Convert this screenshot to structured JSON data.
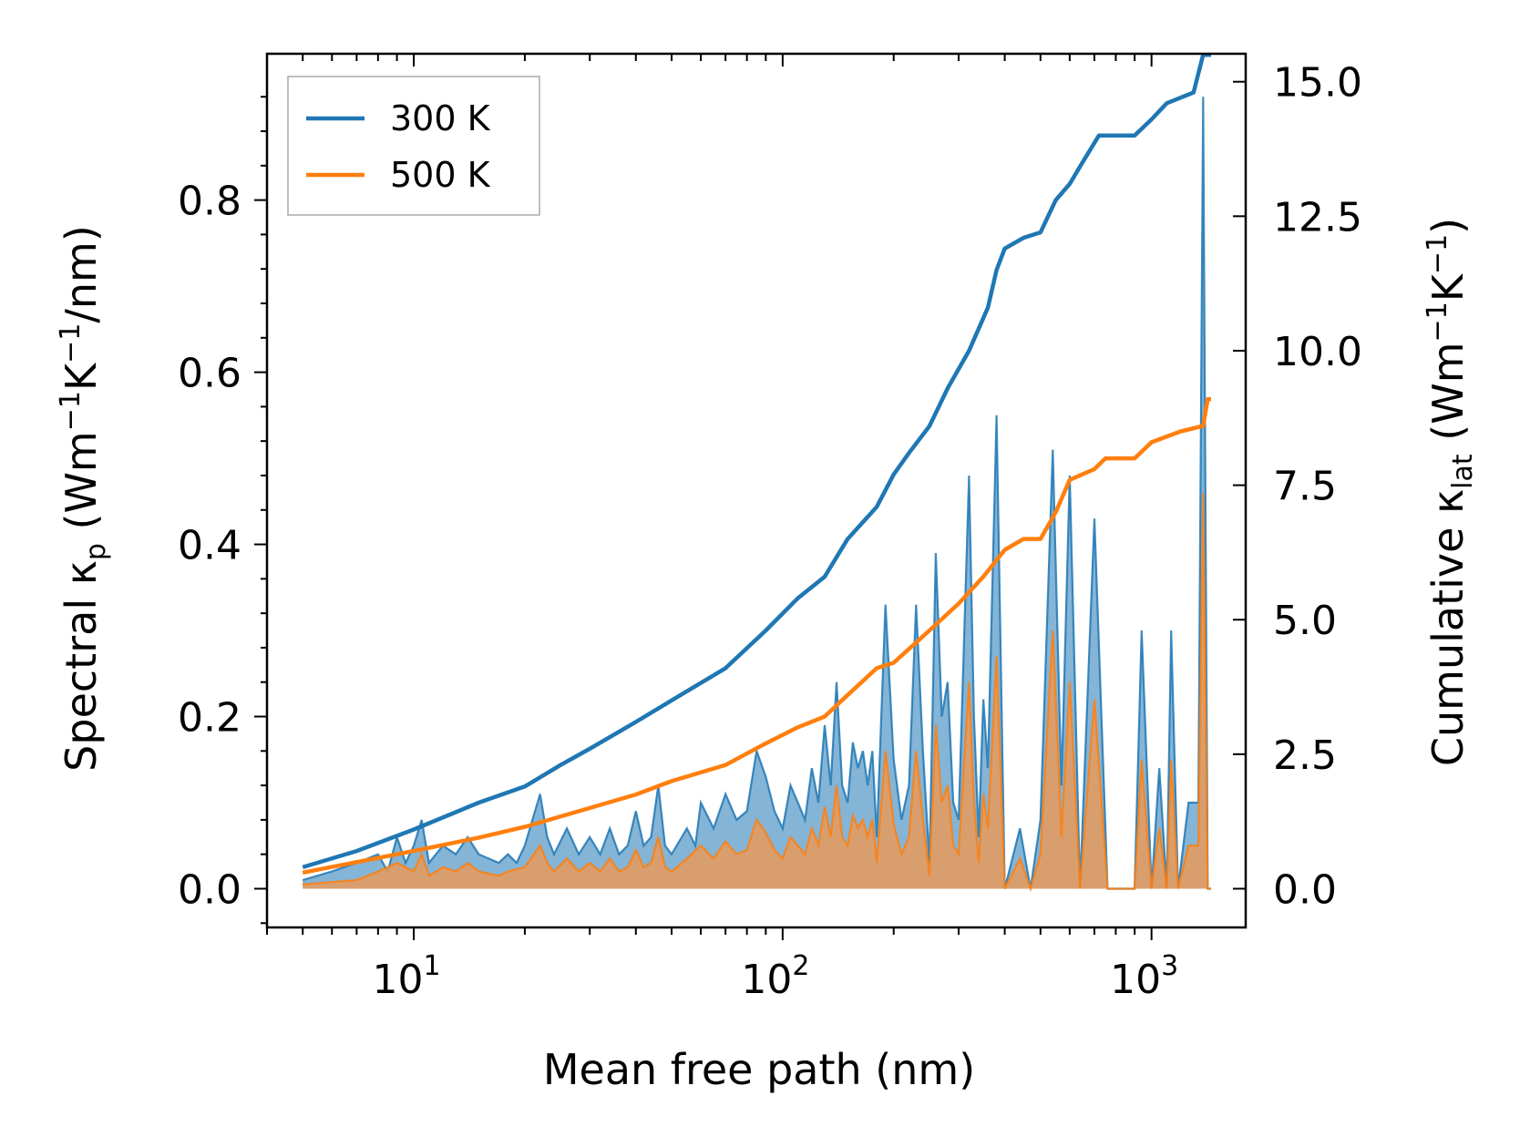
{
  "chart_data": {
    "type": "line",
    "xscale": "log",
    "xlabel": "Mean free path (nm)",
    "ylabel_left": {
      "main": "Spectral κ",
      "sub": "p",
      "units_pre": " (Wm",
      "exp1": "−1",
      "units_mid": "K",
      "exp2": "−1",
      "units_post": "/nm)"
    },
    "ylabel_right": {
      "main": "Cumulative κ",
      "sub": "lat",
      "units_pre": " (Wm",
      "exp1": "−1",
      "units_mid": "K",
      "exp2": "−1",
      "units_post": ")"
    },
    "xlim": [
      4.0,
      1800
    ],
    "ylim_left": [
      -0.045,
      0.97
    ],
    "ylim_right": [
      -0.72,
      15.52
    ],
    "x_ticks": [
      {
        "value": 10,
        "base": "10",
        "exp": "1"
      },
      {
        "value": 100,
        "base": "10",
        "exp": "2"
      },
      {
        "value": 1000,
        "base": "10",
        "exp": "3"
      }
    ],
    "y_ticks_left": [
      "0.0",
      "0.2",
      "0.4",
      "0.6",
      "0.8"
    ],
    "y_ticks_right": [
      "0.0",
      "2.5",
      "5.0",
      "7.5",
      "10.0",
      "12.5",
      "15.0"
    ],
    "legend": {
      "position": "upper-left",
      "entries": [
        "300 K",
        "500 K"
      ]
    },
    "colors": {
      "300 K": "#1f77b4",
      "500 K": "#ff7f0e",
      "fill_300": "#1f77b4",
      "fill_500": "#e89a5a"
    },
    "series": [
      {
        "name": "300 K",
        "cumulative_axis": "right",
        "cumulative": [
          [
            5,
            0.4
          ],
          [
            7,
            0.7
          ],
          [
            10,
            1.1
          ],
          [
            15,
            1.6
          ],
          [
            20,
            1.9
          ],
          [
            25,
            2.3
          ],
          [
            30,
            2.6
          ],
          [
            40,
            3.1
          ],
          [
            50,
            3.5
          ],
          [
            70,
            4.1
          ],
          [
            90,
            4.8
          ],
          [
            110,
            5.4
          ],
          [
            130,
            5.8
          ],
          [
            150,
            6.5
          ],
          [
            180,
            7.1
          ],
          [
            200,
            7.7
          ],
          [
            220,
            8.1
          ],
          [
            250,
            8.6
          ],
          [
            280,
            9.3
          ],
          [
            320,
            10.0
          ],
          [
            360,
            10.8
          ],
          [
            380,
            11.5
          ],
          [
            400,
            11.9
          ],
          [
            450,
            12.1
          ],
          [
            500,
            12.2
          ],
          [
            550,
            12.8
          ],
          [
            600,
            13.1
          ],
          [
            650,
            13.5
          ],
          [
            720,
            14.0
          ],
          [
            900,
            14.0
          ],
          [
            1000,
            14.3
          ],
          [
            1100,
            14.6
          ],
          [
            1300,
            14.8
          ],
          [
            1380,
            15.5
          ],
          [
            1450,
            15.5
          ]
        ],
        "spectral_axis": "left",
        "spectral": [
          [
            5,
            0.01
          ],
          [
            6,
            0.02
          ],
          [
            7,
            0.03
          ],
          [
            8,
            0.04
          ],
          [
            8.5,
            0.02
          ],
          [
            9,
            0.06
          ],
          [
            9.5,
            0.03
          ],
          [
            10,
            0.05
          ],
          [
            10.5,
            0.08
          ],
          [
            11,
            0.03
          ],
          [
            12,
            0.05
          ],
          [
            13,
            0.04
          ],
          [
            14,
            0.06
          ],
          [
            15,
            0.04
          ],
          [
            17,
            0.03
          ],
          [
            18,
            0.04
          ],
          [
            19,
            0.03
          ],
          [
            20,
            0.05
          ],
          [
            22,
            0.11
          ],
          [
            23,
            0.06
          ],
          [
            24,
            0.04
          ],
          [
            26,
            0.07
          ],
          [
            28,
            0.04
          ],
          [
            30,
            0.06
          ],
          [
            32,
            0.04
          ],
          [
            34,
            0.07
          ],
          [
            36,
            0.04
          ],
          [
            38,
            0.05
          ],
          [
            40,
            0.09
          ],
          [
            42,
            0.05
          ],
          [
            44,
            0.06
          ],
          [
            46,
            0.12
          ],
          [
            48,
            0.05
          ],
          [
            50,
            0.04
          ],
          [
            55,
            0.07
          ],
          [
            58,
            0.05
          ],
          [
            60,
            0.1
          ],
          [
            65,
            0.07
          ],
          [
            70,
            0.11
          ],
          [
            75,
            0.08
          ],
          [
            80,
            0.09
          ],
          [
            85,
            0.16
          ],
          [
            90,
            0.13
          ],
          [
            95,
            0.09
          ],
          [
            100,
            0.07
          ],
          [
            105,
            0.12
          ],
          [
            110,
            0.1
          ],
          [
            115,
            0.08
          ],
          [
            120,
            0.14
          ],
          [
            125,
            0.1
          ],
          [
            130,
            0.19
          ],
          [
            135,
            0.12
          ],
          [
            140,
            0.24
          ],
          [
            145,
            0.12
          ],
          [
            150,
            0.1
          ],
          [
            155,
            0.17
          ],
          [
            160,
            0.14
          ],
          [
            165,
            0.16
          ],
          [
            170,
            0.12
          ],
          [
            175,
            0.16
          ],
          [
            180,
            0.06
          ],
          [
            190,
            0.33
          ],
          [
            200,
            0.15
          ],
          [
            210,
            0.08
          ],
          [
            220,
            0.12
          ],
          [
            230,
            0.33
          ],
          [
            240,
            0.16
          ],
          [
            250,
            0.03
          ],
          [
            260,
            0.39
          ],
          [
            270,
            0.2
          ],
          [
            280,
            0.24
          ],
          [
            290,
            0.1
          ],
          [
            300,
            0.08
          ],
          [
            320,
            0.48
          ],
          [
            330,
            0.2
          ],
          [
            340,
            0.06
          ],
          [
            350,
            0.22
          ],
          [
            360,
            0.14
          ],
          [
            380,
            0.55
          ],
          [
            400,
            0.0
          ],
          [
            440,
            0.07
          ],
          [
            470,
            0.0
          ],
          [
            500,
            0.08
          ],
          [
            540,
            0.51
          ],
          [
            570,
            0.12
          ],
          [
            600,
            0.48
          ],
          [
            640,
            0.0
          ],
          [
            700,
            0.43
          ],
          [
            760,
            0.0
          ],
          [
            900,
            0.0
          ],
          [
            940,
            0.3
          ],
          [
            1000,
            0.0
          ],
          [
            1050,
            0.14
          ],
          [
            1100,
            0.0
          ],
          [
            1130,
            0.3
          ],
          [
            1180,
            0.0
          ],
          [
            1260,
            0.1
          ],
          [
            1340,
            0.1
          ],
          [
            1380,
            0.92
          ],
          [
            1420,
            0.0
          ],
          [
            1450,
            0.0
          ]
        ]
      },
      {
        "name": "500 K",
        "cumulative_axis": "right",
        "cumulative": [
          [
            5,
            0.3
          ],
          [
            10,
            0.7
          ],
          [
            15,
            0.95
          ],
          [
            20,
            1.15
          ],
          [
            30,
            1.5
          ],
          [
            40,
            1.75
          ],
          [
            50,
            2.0
          ],
          [
            70,
            2.3
          ],
          [
            90,
            2.7
          ],
          [
            110,
            3.0
          ],
          [
            130,
            3.2
          ],
          [
            150,
            3.6
          ],
          [
            180,
            4.1
          ],
          [
            200,
            4.2
          ],
          [
            250,
            4.8
          ],
          [
            300,
            5.3
          ],
          [
            350,
            5.8
          ],
          [
            400,
            6.3
          ],
          [
            450,
            6.5
          ],
          [
            500,
            6.5
          ],
          [
            550,
            7.0
          ],
          [
            600,
            7.6
          ],
          [
            700,
            7.8
          ],
          [
            750,
            8.0
          ],
          [
            900,
            8.0
          ],
          [
            1000,
            8.3
          ],
          [
            1200,
            8.5
          ],
          [
            1380,
            8.6
          ],
          [
            1420,
            9.1
          ],
          [
            1450,
            9.1
          ]
        ],
        "spectral_axis": "left",
        "spectral": [
          [
            5,
            0.005
          ],
          [
            7,
            0.01
          ],
          [
            8,
            0.02
          ],
          [
            9,
            0.03
          ],
          [
            10,
            0.02
          ],
          [
            10.5,
            0.04
          ],
          [
            11,
            0.015
          ],
          [
            12,
            0.025
          ],
          [
            13,
            0.02
          ],
          [
            14,
            0.03
          ],
          [
            15,
            0.02
          ],
          [
            17,
            0.015
          ],
          [
            18,
            0.02
          ],
          [
            20,
            0.025
          ],
          [
            22,
            0.05
          ],
          [
            23,
            0.03
          ],
          [
            24,
            0.02
          ],
          [
            26,
            0.035
          ],
          [
            28,
            0.02
          ],
          [
            30,
            0.03
          ],
          [
            32,
            0.02
          ],
          [
            34,
            0.035
          ],
          [
            36,
            0.02
          ],
          [
            38,
            0.025
          ],
          [
            40,
            0.045
          ],
          [
            42,
            0.025
          ],
          [
            44,
            0.03
          ],
          [
            46,
            0.06
          ],
          [
            48,
            0.025
          ],
          [
            50,
            0.02
          ],
          [
            55,
            0.035
          ],
          [
            60,
            0.05
          ],
          [
            65,
            0.035
          ],
          [
            70,
            0.055
          ],
          [
            75,
            0.04
          ],
          [
            80,
            0.045
          ],
          [
            85,
            0.08
          ],
          [
            90,
            0.065
          ],
          [
            95,
            0.045
          ],
          [
            100,
            0.035
          ],
          [
            105,
            0.06
          ],
          [
            110,
            0.05
          ],
          [
            115,
            0.04
          ],
          [
            120,
            0.07
          ],
          [
            125,
            0.05
          ],
          [
            130,
            0.095
          ],
          [
            135,
            0.06
          ],
          [
            140,
            0.12
          ],
          [
            145,
            0.06
          ],
          [
            150,
            0.05
          ],
          [
            155,
            0.085
          ],
          [
            160,
            0.07
          ],
          [
            165,
            0.08
          ],
          [
            170,
            0.06
          ],
          [
            175,
            0.08
          ],
          [
            180,
            0.03
          ],
          [
            190,
            0.16
          ],
          [
            200,
            0.075
          ],
          [
            210,
            0.04
          ],
          [
            220,
            0.06
          ],
          [
            230,
            0.16
          ],
          [
            240,
            0.08
          ],
          [
            250,
            0.015
          ],
          [
            260,
            0.19
          ],
          [
            270,
            0.1
          ],
          [
            280,
            0.12
          ],
          [
            290,
            0.05
          ],
          [
            300,
            0.04
          ],
          [
            320,
            0.24
          ],
          [
            330,
            0.1
          ],
          [
            340,
            0.03
          ],
          [
            350,
            0.11
          ],
          [
            360,
            0.07
          ],
          [
            380,
            0.27
          ],
          [
            400,
            0.0
          ],
          [
            440,
            0.035
          ],
          [
            470,
            0.0
          ],
          [
            500,
            0.04
          ],
          [
            540,
            0.3
          ],
          [
            570,
            0.06
          ],
          [
            600,
            0.24
          ],
          [
            640,
            0.0
          ],
          [
            700,
            0.22
          ],
          [
            760,
            0.0
          ],
          [
            900,
            0.0
          ],
          [
            940,
            0.15
          ],
          [
            1000,
            0.0
          ],
          [
            1050,
            0.07
          ],
          [
            1100,
            0.0
          ],
          [
            1130,
            0.15
          ],
          [
            1180,
            0.0
          ],
          [
            1260,
            0.05
          ],
          [
            1340,
            0.05
          ],
          [
            1380,
            0.46
          ],
          [
            1420,
            0.0
          ],
          [
            1450,
            0.0
          ]
        ]
      }
    ]
  }
}
